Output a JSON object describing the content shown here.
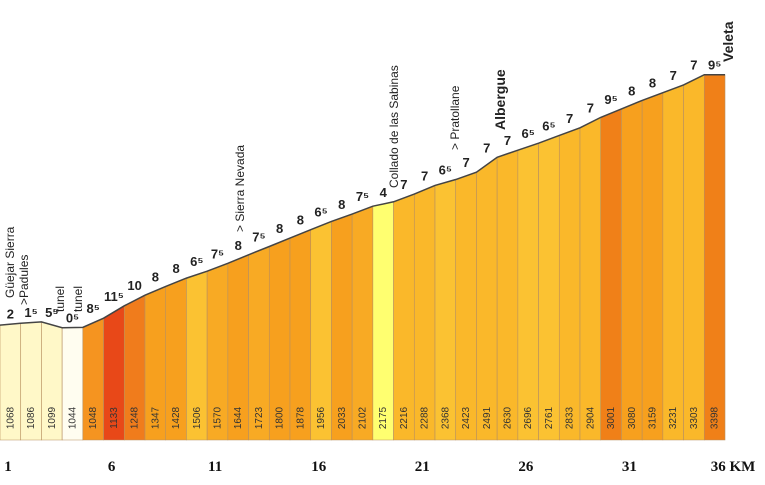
{
  "chart_data": {
    "type": "profile",
    "altitudes": [
      1068,
      1086,
      1099,
      1044,
      1048,
      1133,
      1248,
      1347,
      1428,
      1506,
      1570,
      1644,
      1723,
      1800,
      1878,
      1956,
      2033,
      2102,
      2175,
      2216,
      2288,
      2368,
      2423,
      2491,
      2630,
      2696,
      2761,
      2833,
      2904,
      3001,
      3080,
      3159,
      3231,
      3303,
      3398
    ],
    "grades": [
      "2",
      "1⁵",
      "5⁵",
      "0⁵",
      "8⁵",
      "11⁵",
      "10",
      "8",
      "8",
      "6⁵",
      "7⁵",
      "8",
      "7⁵",
      "8",
      "8",
      "6⁵",
      "8",
      "7⁵",
      "4",
      "7",
      "7",
      "6⁵",
      "7",
      "7",
      "7",
      "6⁵",
      "6⁵",
      "7",
      "7",
      "9⁵",
      "8",
      "8",
      "7",
      "7",
      "9⁵"
    ],
    "colors": [
      "#fff8c8",
      "#fff8c8",
      "#fff8c8",
      "#fffdf0",
      "#f59420",
      "#e84818",
      "#f07c1c",
      "#f7a01e",
      "#f7a01e",
      "#fbc232",
      "#f8aa24",
      "#f7a01e",
      "#f8aa24",
      "#f7a01e",
      "#f7a01e",
      "#fbc232",
      "#f7a01e",
      "#f8aa24",
      "#ffff70",
      "#fab82a",
      "#fab82a",
      "#fbc232",
      "#fab82a",
      "#fab82a",
      "#fab82a",
      "#fbc232",
      "#fbc232",
      "#fab82a",
      "#fab82a",
      "#f08018",
      "#f7a01e",
      "#f7a01e",
      "#fab82a",
      "#fab82a",
      "#f08018"
    ],
    "ylim": [
      0,
      4000
    ],
    "xticks": [
      1,
      6,
      11,
      16,
      21,
      26,
      31,
      {
        "value": 36,
        "label": "36 KM"
      }
    ],
    "annotations": [
      "Güejar Sierra",
      ">Padules",
      "tunel",
      "tunel",
      "> Sierra Nevada",
      "Collado de las Sabinas",
      "> Pratollane",
      "Albergue",
      "Veleta"
    ]
  }
}
